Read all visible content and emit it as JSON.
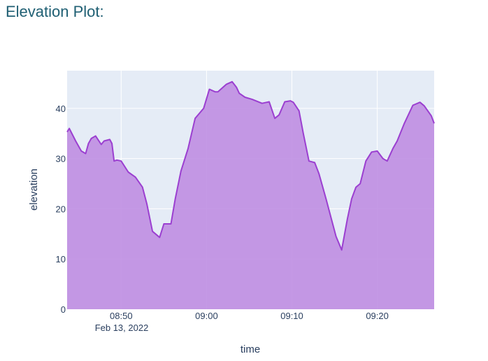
{
  "page": {
    "title": "Elevation Plot:"
  },
  "chart_data": {
    "type": "area",
    "xlabel": "time",
    "ylabel": "elevation",
    "xlim": [
      "2022-02-13 08:43:40",
      "2022-02-13 09:26:40"
    ],
    "ylim": [
      0,
      47.5
    ],
    "x_ticks": [
      "08:50",
      "09:00",
      "09:10",
      "09:20"
    ],
    "x_date_label": "Feb 13, 2022",
    "y_ticks": [
      0,
      10,
      20,
      30,
      40
    ],
    "grid": true,
    "legend": "none",
    "colors": {
      "line": "#9b3fd0",
      "fill": "#bf8ee2",
      "plot_bg": "#e5ecf6",
      "grid": "#ffffff"
    },
    "series": [
      {
        "x": [
          "2022-02-13 08:43:40",
          "2022-02-13 08:43:55",
          "2022-02-13 08:44:40",
          "2022-02-13 08:45:20",
          "2022-02-13 08:45:50",
          "2022-02-13 08:46:10",
          "2022-02-13 08:46:30",
          "2022-02-13 08:47:00",
          "2022-02-13 08:47:40",
          "2022-02-13 08:48:00",
          "2022-02-13 08:48:40",
          "2022-02-13 08:48:55",
          "2022-02-13 08:49:10",
          "2022-02-13 08:49:30",
          "2022-02-13 08:50:00",
          "2022-02-13 08:50:50",
          "2022-02-13 08:51:40",
          "2022-02-13 08:52:30",
          "2022-02-13 08:53:00",
          "2022-02-13 08:53:40",
          "2022-02-13 08:54:30",
          "2022-02-13 08:55:00",
          "2022-02-13 08:55:50",
          "2022-02-13 08:56:20",
          "2022-02-13 08:57:00",
          "2022-02-13 08:57:50",
          "2022-02-13 08:58:40",
          "2022-02-13 08:59:10",
          "2022-02-13 08:59:40",
          "2022-02-13 09:00:20",
          "2022-02-13 09:01:00",
          "2022-02-13 09:01:20",
          "2022-02-13 09:02:20",
          "2022-02-13 09:03:00",
          "2022-02-13 09:03:30",
          "2022-02-13 09:03:50",
          "2022-02-13 09:04:30",
          "2022-02-13 09:05:20",
          "2022-02-13 09:06:30",
          "2022-02-13 09:07:20",
          "2022-02-13 09:08:00",
          "2022-02-13 09:08:30",
          "2022-02-13 09:09:10",
          "2022-02-13 09:09:50",
          "2022-02-13 09:10:10",
          "2022-02-13 09:10:50",
          "2022-02-13 09:11:20",
          "2022-02-13 09:12:00",
          "2022-02-13 09:12:40",
          "2022-02-13 09:13:10",
          "2022-02-13 09:14:00",
          "2022-02-13 09:15:10",
          "2022-02-13 09:15:50",
          "2022-02-13 09:16:30",
          "2022-02-13 09:17:00",
          "2022-02-13 09:17:30",
          "2022-02-13 09:18:00",
          "2022-02-13 09:18:40",
          "2022-02-13 09:19:20",
          "2022-02-13 09:20:00",
          "2022-02-13 09:20:40",
          "2022-02-13 09:21:10",
          "2022-02-13 09:21:50",
          "2022-02-13 09:22:20",
          "2022-02-13 09:23:10",
          "2022-02-13 09:24:10",
          "2022-02-13 09:25:00",
          "2022-02-13 09:25:30",
          "2022-02-13 09:26:20",
          "2022-02-13 09:26:40"
        ],
        "y": [
          35.3,
          36.0,
          33.5,
          31.5,
          31.0,
          33.0,
          34.0,
          34.5,
          32.8,
          33.5,
          33.8,
          33.0,
          29.5,
          29.7,
          29.5,
          27.3,
          26.3,
          24.3,
          21.0,
          15.5,
          14.3,
          17.0,
          17.0,
          22.0,
          27.5,
          32.0,
          38.0,
          39.0,
          40.0,
          43.8,
          43.3,
          43.3,
          44.8,
          45.3,
          44.2,
          43.0,
          42.2,
          41.8,
          41.0,
          41.3,
          38.0,
          38.7,
          41.3,
          41.5,
          41.2,
          39.5,
          35.0,
          29.5,
          29.2,
          27.0,
          22.0,
          14.5,
          11.8,
          18.0,
          22.0,
          24.3,
          25.0,
          29.5,
          31.3,
          31.5,
          30.0,
          29.5,
          32.0,
          33.5,
          37.0,
          40.6,
          41.2,
          40.5,
          38.5,
          37.0
        ]
      }
    ]
  }
}
